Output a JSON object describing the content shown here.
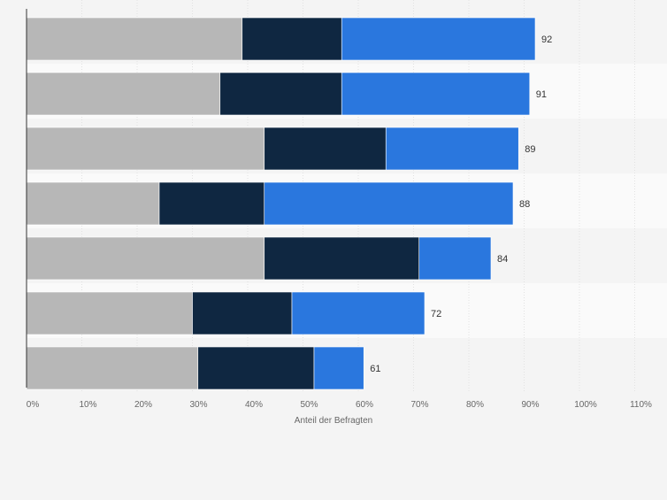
{
  "chart_data": {
    "type": "bar",
    "orientation": "horizontal",
    "stacked": true,
    "xlabel": "Anteil der Befragten",
    "ylabel": "",
    "xlim": [
      0,
      110
    ],
    "xticks": [
      "0%",
      "10%",
      "20%",
      "30%",
      "40%",
      "50%",
      "60%",
      "70%",
      "80%",
      "90%",
      "100%",
      "110%"
    ],
    "grid": "vertical",
    "series": [
      {
        "color": "#b7b7b7",
        "values": [
          39,
          35,
          43,
          24,
          43,
          30,
          31
        ]
      },
      {
        "color": "#0f2741",
        "values": [
          18,
          22,
          22,
          19,
          28,
          18,
          21
        ]
      },
      {
        "color": "#2a77de",
        "values": [
          35,
          34,
          24,
          45,
          13,
          24,
          9
        ]
      }
    ],
    "totals": [
      92,
      91,
      89,
      88,
      84,
      72,
      61
    ]
  }
}
